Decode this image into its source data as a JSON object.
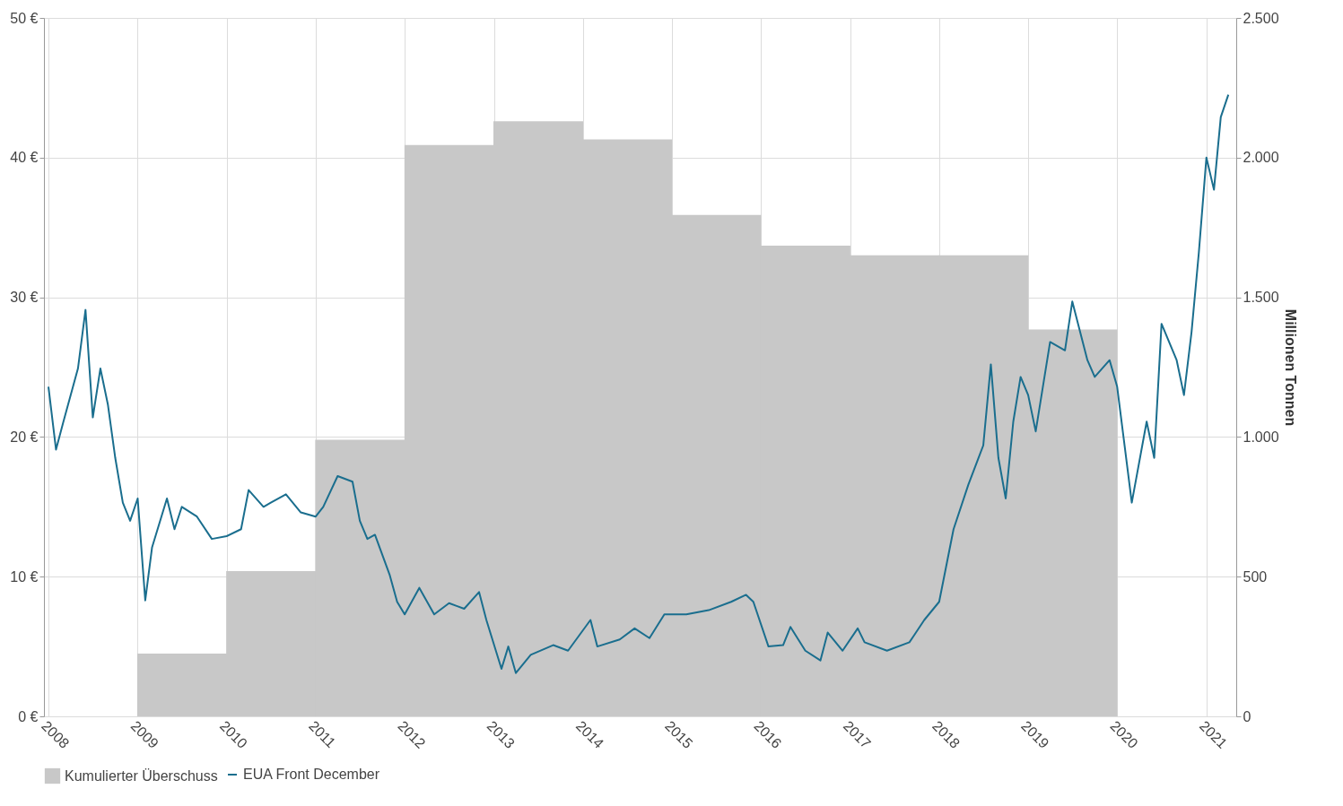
{
  "chart_data": {
    "type": "line",
    "xlim": [
      "2008-01",
      "2021-04-15"
    ],
    "xticks": [
      "2008",
      "2009",
      "2010",
      "2011",
      "2012",
      "2013",
      "2014",
      "2015",
      "2016",
      "2017",
      "2018",
      "2019",
      "2020",
      "2021"
    ],
    "ylim": [
      0,
      50
    ],
    "yticks": [
      {
        "value": 0,
        "label": "0 €"
      },
      {
        "value": 10,
        "label": "10 €"
      },
      {
        "value": 20,
        "label": "20 €"
      },
      {
        "value": 30,
        "label": "30 €"
      },
      {
        "value": 40,
        "label": "40 €"
      },
      {
        "value": 50,
        "label": "50 €"
      }
    ],
    "y2lim": [
      0,
      2500
    ],
    "y2ticks": [
      0,
      500,
      {
        "value": 1000,
        "label": "1.000"
      },
      {
        "value": 1500,
        "label": "1.500"
      },
      {
        "value": 2000,
        "label": "2.000"
      },
      {
        "value": 2500,
        "label": "2.500"
      }
    ],
    "y2label": "Millionen Tonnen",
    "grid": true,
    "legend": "bottom",
    "series": [
      {
        "name": "Kumulierter Überschuss",
        "type": "bar",
        "axis": "y2",
        "color": "#c8c8c8",
        "x": [
          "2009-07-02",
          "2010-07-02",
          "2011-07-02",
          "2012-07-02",
          "2013-07-02",
          "2014-07-02",
          "2015-07-02",
          "2016-07-02",
          "2017-07-02",
          "2018-07-02",
          "2019-07-02"
        ],
        "values": [
          225,
          520,
          990,
          2045,
          2130,
          2065,
          1795,
          1685,
          1650,
          1650,
          1385
        ]
      },
      {
        "name": "EUA Front December",
        "color": "#1a6e8e",
        "x": [
          "2008-01",
          "2008-02",
          "2008-03",
          "2008-05",
          "2008-06",
          "2008-07",
          "2008-08",
          "2008-09",
          "2008-10",
          "2008-11",
          "2008-12",
          "2009-01",
          "2009-02",
          "2009-03",
          "2009-05",
          "2009-06",
          "2009-07",
          "2009-09",
          "2009-11",
          "2010-01",
          "2010-03",
          "2010-04",
          "2010-06",
          "2010-07",
          "2010-09",
          "2010-11",
          "2011-01",
          "2011-02",
          "2011-04",
          "2011-06",
          "2011-07",
          "2011-08",
          "2011-09",
          "2011-11",
          "2011-12",
          "2012-01",
          "2012-03",
          "2012-05",
          "2012-07",
          "2012-09",
          "2012-11",
          "2012-12",
          "2013-02",
          "2013-03",
          "2013-04",
          "2013-06",
          "2013-09",
          "2013-11",
          "2014-02",
          "2014-03",
          "2014-06",
          "2014-08",
          "2014-10",
          "2014-12",
          "2015-03",
          "2015-06",
          "2015-09",
          "2015-11",
          "2015-12",
          "2016-02",
          "2016-04",
          "2016-05",
          "2016-07",
          "2016-09",
          "2016-10",
          "2016-12",
          "2017-02",
          "2017-03",
          "2017-06",
          "2017-09",
          "2017-11",
          "2018-01",
          "2018-03",
          "2018-05",
          "2018-07",
          "2018-08",
          "2018-09",
          "2018-10",
          "2018-11",
          "2018-12",
          "2019-01",
          "2019-02",
          "2019-04",
          "2019-06",
          "2019-07",
          "2019-09",
          "2019-10",
          "2019-12",
          "2020-01",
          "2020-03",
          "2020-05",
          "2020-06",
          "2020-07",
          "2020-09",
          "2020-10",
          "2020-11",
          "2020-12",
          "2021-01",
          "2021-02",
          "2021-03",
          "2021-04"
        ],
        "values": [
          23.6,
          19.1,
          21,
          24.9,
          29.1,
          21.4,
          24.9,
          22.3,
          18.5,
          15.3,
          14,
          15.6,
          8.3,
          12.1,
          15.6,
          13.4,
          15,
          14.3,
          12.7,
          12.9,
          13.4,
          16.2,
          15,
          15.3,
          15.9,
          14.6,
          14.3,
          15,
          17.2,
          16.8,
          14,
          12.7,
          13,
          10.1,
          8.2,
          7.3,
          9.2,
          7.3,
          8.1,
          7.7,
          8.9,
          6.9,
          3.4,
          5,
          3.1,
          4.4,
          5.1,
          4.7,
          6.9,
          5,
          5.5,
          6.3,
          5.6,
          7.3,
          7.3,
          7.6,
          8.2,
          8.7,
          8.2,
          5,
          5.1,
          6.4,
          4.7,
          4,
          6,
          4.7,
          6.3,
          5.3,
          4.7,
          5.3,
          6.9,
          8.2,
          13.4,
          16.6,
          19.4,
          25.2,
          18.5,
          15.6,
          21.1,
          24.3,
          23,
          20.4,
          26.8,
          26.2,
          29.7,
          25.5,
          24.3,
          25.5,
          23.6,
          15.3,
          21.1,
          18.5,
          28.1,
          25.5,
          23,
          27.5,
          33.2,
          40,
          37.7,
          42.9,
          44.5
        ]
      }
    ]
  }
}
